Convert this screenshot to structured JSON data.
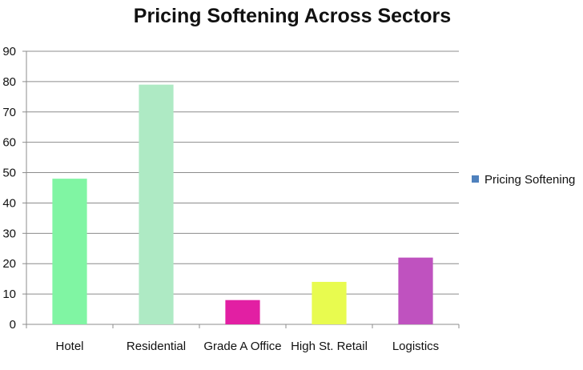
{
  "chart_data": {
    "type": "bar",
    "title": "Pricing Softening Across Sectors",
    "categories": [
      "Hotel",
      "Residential",
      "Grade A Office",
      "High St. Retail",
      "Logistics"
    ],
    "series": [
      {
        "name": "Pricing Softening",
        "values": [
          48,
          79,
          8,
          14,
          22
        ]
      }
    ],
    "bar_colors": [
      "#80f5a3",
      "#aeeac4",
      "#e21fa3",
      "#e8fb4f",
      "#bf52bf"
    ],
    "legend_color": "#4f81bd",
    "ylim": [
      0,
      90
    ],
    "yticks": [
      0,
      10,
      20,
      30,
      40,
      50,
      60,
      70,
      80,
      90
    ],
    "xlabel": "",
    "ylabel": "",
    "grid": true,
    "legend_position": "right"
  }
}
